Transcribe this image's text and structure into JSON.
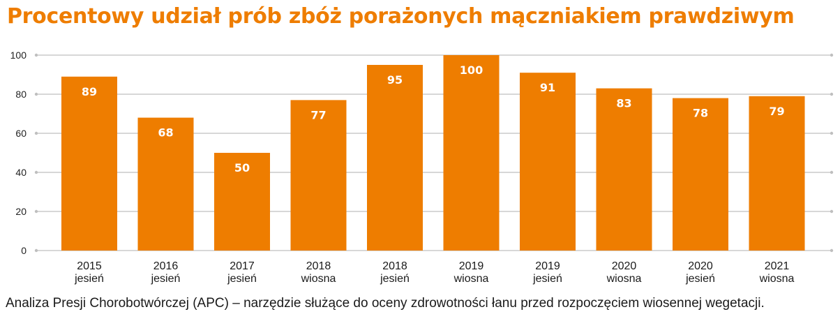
{
  "title": "Procentowy udział prób zbóż porażonych mączniakiem prawdziwym",
  "caption": "Analiza Presji Chorobotwórczej (APC) – narzędzie służące do oceny zdrowotności łanu przed rozpoczęciem wiosennej wegetacji.",
  "colors": {
    "bar": "#EE7D00",
    "title": "#EE7D00",
    "grid": "#BFBFBF",
    "data_label": "#FFFFFF"
  },
  "chart_data": {
    "type": "bar",
    "categories": [
      [
        "2015",
        "jesień"
      ],
      [
        "2016",
        "jesień"
      ],
      [
        "2017",
        "jesień"
      ],
      [
        "2018",
        "wiosna"
      ],
      [
        "2018",
        "jesień"
      ],
      [
        "2019",
        "wiosna"
      ],
      [
        "2019",
        "jesień"
      ],
      [
        "2020",
        "wiosna"
      ],
      [
        "2020",
        "jesień"
      ],
      [
        "2021",
        "wiosna"
      ]
    ],
    "values": [
      89,
      68,
      50,
      77,
      95,
      100,
      91,
      83,
      78,
      79
    ],
    "data_labels": [
      "89",
      "68",
      "50",
      "77",
      "95",
      "100",
      "91",
      "83",
      "78",
      "79"
    ],
    "yticks": [
      0,
      20,
      40,
      60,
      80,
      100
    ],
    "ylim": [
      0,
      100
    ],
    "grid": true,
    "legend": "none"
  }
}
